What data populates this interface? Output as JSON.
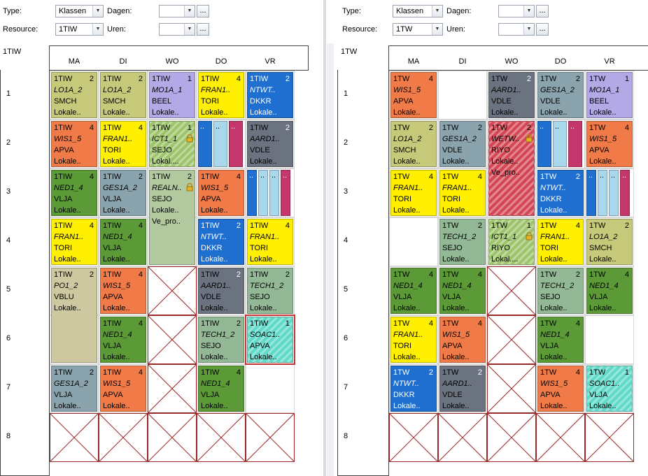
{
  "colors": {
    "olive": "#c6c97a",
    "lav": "#b3a9e6",
    "yellow": "#ffef00",
    "blue": "#1f6fd0",
    "orange": "#f07b48",
    "green": "#5c9a38",
    "slate": "#8aa3ad",
    "gray": "#6b7280",
    "sage": "#93b896",
    "tan": "#cdc8a0",
    "teal": "#5fd9c8",
    "lblue": "#a9d7ec",
    "magenta": "#c4376c",
    "red": "#d44654",
    "lime": "#9dc46a",
    "pale": "#b2c9a0"
  },
  "left": {
    "type_label": "Type:",
    "type_value": "Klassen",
    "resource_label": "Resource:",
    "resource_value": "1TIW",
    "dagen_label": "Dagen:",
    "uren_label": "Uren:",
    "dots": "...",
    "class_name": "1TIW",
    "days": [
      "MA",
      "DI",
      "WO",
      "DO",
      "VR"
    ],
    "rows": [
      "1",
      "2",
      "3",
      "4",
      "5",
      "6",
      "7",
      "8"
    ]
  },
  "right": {
    "type_label": "Type:",
    "type_value": "Klassen",
    "resource_label": "Resource:",
    "resource_value": "1TW",
    "dagen_label": "Dagen:",
    "uren_label": "Uren:",
    "dots": "...",
    "class_name": "1TW",
    "days": [
      "MA",
      "DI",
      "WO",
      "DO",
      "VR"
    ],
    "rows": [
      "1",
      "2",
      "3",
      "4",
      "5",
      "6",
      "7",
      "8"
    ]
  },
  "left_lessons": [
    {
      "d": 0,
      "r": 0,
      "h": 1,
      "c": "olive",
      "num": "2",
      "l1": "1TIW",
      "l2": "LO1A_2",
      "l3": "SMCH",
      "l4": "Lokale.."
    },
    {
      "d": 1,
      "r": 0,
      "h": 1,
      "c": "olive",
      "num": "2",
      "l1": "1TIW",
      "l2": "LO1A_2",
      "l3": "SMCH",
      "l4": "Lokale.."
    },
    {
      "d": 2,
      "r": 0,
      "h": 1,
      "c": "lav",
      "num": "1",
      "l1": "1TIW",
      "l2": "MO1A_1",
      "l3": "BEEL",
      "l4": "Lokale.."
    },
    {
      "d": 3,
      "r": 0,
      "h": 1,
      "c": "yellow",
      "num": "4",
      "l1": "1TIW",
      "l2": "FRAN1..",
      "l3": "TORI",
      "l4": "Lokale.."
    },
    {
      "d": 4,
      "r": 0,
      "h": 1,
      "c": "blue",
      "num": "2",
      "l1": "1TIW",
      "l2": "NTWT..",
      "l3": "DKKR",
      "l4": "Lokale.."
    },
    {
      "d": 0,
      "r": 1,
      "h": 1,
      "c": "orange",
      "num": "4",
      "l1": "1TIW",
      "l2": "WIS1_5",
      "l3": "APVA",
      "l4": "Lokale.."
    },
    {
      "d": 1,
      "r": 1,
      "h": 1,
      "c": "yellow",
      "num": "4",
      "l1": "1TIW",
      "l2": "FRAN1..",
      "l3": "TORI",
      "l4": "Lokale.."
    },
    {
      "d": 2,
      "r": 1,
      "h": 1,
      "c": "lime",
      "hatch": true,
      "lock": true,
      "num": "1",
      "l1": "1TIW",
      "l2": "ICT1_1",
      "l3": "SEJO",
      "l4": "Lokal...."
    },
    {
      "d": 4,
      "r": 1,
      "h": 1,
      "c": "gray",
      "num": "2",
      "l1": "1TIW",
      "l2": "AARD1..",
      "l3": "VDLE",
      "l4": "Lokale.."
    },
    {
      "d": 0,
      "r": 2,
      "h": 1,
      "c": "green",
      "num": "4",
      "l1": "1TIW",
      "l2": "NED1_4",
      "l3": "VLJA",
      "l4": "Lokale.."
    },
    {
      "d": 1,
      "r": 2,
      "h": 1,
      "c": "slate",
      "num": "2",
      "l1": "1TIW",
      "l2": "GES1A_2",
      "l3": "VLJA",
      "l4": "Lokale.."
    },
    {
      "d": 2,
      "r": 2,
      "h": 2,
      "c": "pale",
      "lock": true,
      "num": "2",
      "l1": "1TIW",
      "l2": "REALN..",
      "l3": "SEJO",
      "l4": "Lokale..",
      "l5": "Ve_pro.."
    },
    {
      "d": 3,
      "r": 2,
      "h": 1,
      "c": "orange",
      "num": "4",
      "l1": "1TIW",
      "l2": "WIS1_5",
      "l3": "APVA",
      "l4": "Lokale.."
    },
    {
      "d": 0,
      "r": 3,
      "h": 1,
      "c": "yellow",
      "num": "4",
      "l1": "1TIW",
      "l2": "FRAN1..",
      "l3": "TORI",
      "l4": "Lokale.."
    },
    {
      "d": 1,
      "r": 3,
      "h": 1,
      "c": "green",
      "num": "4",
      "l1": "1TIW",
      "l2": "NED1_4",
      "l3": "VLJA",
      "l4": "Lokale.."
    },
    {
      "d": 3,
      "r": 3,
      "h": 1,
      "c": "blue",
      "num": "2",
      "l1": "1TIW",
      "l2": "NTWT..",
      "l3": "DKKR",
      "l4": "Lokale.."
    },
    {
      "d": 4,
      "r": 3,
      "h": 1,
      "c": "yellow",
      "num": "4",
      "l1": "1TIW",
      "l2": "FRAN1..",
      "l3": "TORI",
      "l4": "Lokale.."
    },
    {
      "d": 0,
      "r": 4,
      "h": 2,
      "c": "tan",
      "num": "2",
      "l1": "1TIW",
      "l2": "PO1_2",
      "l3": "VBLU",
      "l4": "Lokale.."
    },
    {
      "d": 1,
      "r": 4,
      "h": 1,
      "c": "orange",
      "num": "4",
      "l1": "1TIW",
      "l2": "WIS1_5",
      "l3": "APVA",
      "l4": "Lokale.."
    },
    {
      "d": 3,
      "r": 4,
      "h": 1,
      "c": "gray",
      "num": "2",
      "l1": "1TIW",
      "l2": "AARD1..",
      "l3": "VDLE",
      "l4": "Lokale.."
    },
    {
      "d": 4,
      "r": 4,
      "h": 1,
      "c": "sage",
      "num": "2",
      "l1": "1TIW",
      "l2": "TECH1_2",
      "l3": "SEJO",
      "l4": "Lokale.."
    },
    {
      "d": 1,
      "r": 5,
      "h": 1,
      "c": "green",
      "num": "4",
      "l1": "1TIW",
      "l2": "NED1_4",
      "l3": "VLJA",
      "l4": "Lokale.."
    },
    {
      "d": 3,
      "r": 5,
      "h": 1,
      "c": "sage",
      "num": "2",
      "l1": "1TIW",
      "l2": "TECH1_2",
      "l3": "SEJO",
      "l4": "Lokale.."
    },
    {
      "d": 4,
      "r": 5,
      "h": 1,
      "c": "teal",
      "hatch": true,
      "sel": true,
      "num": "1",
      "l1": "1TIW",
      "l2": "SOAC1..",
      "l3": "APVA",
      "l4": "Lokale.."
    },
    {
      "d": 0,
      "r": 6,
      "h": 1,
      "c": "slate",
      "num": "2",
      "l1": "1TIW",
      "l2": "GES1A_2",
      "l3": "VLJA",
      "l4": "Lokale.."
    },
    {
      "d": 1,
      "r": 6,
      "h": 1,
      "c": "orange",
      "num": "4",
      "l1": "1TIW",
      "l2": "WIS1_5",
      "l3": "APVA",
      "l4": "Lokale.."
    },
    {
      "d": 3,
      "r": 6,
      "h": 1,
      "c": "green",
      "num": "4",
      "l1": "1TIW",
      "l2": "NED1_4",
      "l3": "VLJA",
      "l4": "Lokale.."
    }
  ],
  "left_splits": [
    {
      "d": 3,
      "r": 1,
      "parts": [
        {
          "c": "blue",
          "t": ".."
        },
        {
          "c": "lblue",
          "t": ".."
        },
        {
          "c": "magenta",
          "t": ".."
        }
      ]
    },
    {
      "d": 4,
      "r": 2,
      "parts": [
        {
          "c": "blue",
          "t": ".."
        },
        {
          "c": "lblue",
          "t": ".."
        },
        {
          "c": "lblue",
          "t": ".."
        },
        {
          "c": "magenta",
          "t": ".."
        }
      ]
    }
  ],
  "left_x": [
    [
      2,
      4
    ],
    [
      2,
      5
    ],
    [
      2,
      6
    ],
    [
      0,
      7
    ],
    [
      1,
      7
    ],
    [
      2,
      7
    ],
    [
      3,
      7
    ],
    [
      4,
      7
    ]
  ],
  "right_lessons": [
    {
      "d": 0,
      "r": 0,
      "h": 1,
      "c": "orange",
      "num": "4",
      "l1": "1TW",
      "l2": "WIS1_5",
      "l3": "APVA",
      "l4": "Lokale.."
    },
    {
      "d": 2,
      "r": 0,
      "h": 1,
      "c": "gray",
      "num": "2",
      "l1": "1TW",
      "l2": "AARD1..",
      "l3": "VDLE",
      "l4": "Lokale.."
    },
    {
      "d": 3,
      "r": 0,
      "h": 1,
      "c": "slate",
      "num": "2",
      "l1": "1TW",
      "l2": "GES1A_2",
      "l3": "VDLE",
      "l4": "Lokale.."
    },
    {
      "d": 4,
      "r": 0,
      "h": 1,
      "c": "lav",
      "num": "1",
      "l1": "1TW",
      "l2": "MO1A_1",
      "l3": "BEEL",
      "l4": "Lokale.."
    },
    {
      "d": 0,
      "r": 1,
      "h": 1,
      "c": "olive",
      "num": "2",
      "l1": "1TW",
      "l2": "LO1A_2",
      "l3": "SMCH",
      "l4": "Lokale.."
    },
    {
      "d": 1,
      "r": 1,
      "h": 1,
      "c": "slate",
      "num": "2",
      "l1": "1TW",
      "l2": "GES1A_2",
      "l3": "VDLE",
      "l4": "Lokale.."
    },
    {
      "d": 2,
      "r": 1,
      "h": 2,
      "c": "red",
      "hatch": true,
      "lock": true,
      "num": "2",
      "l1": "1TW",
      "l2": "WETW..",
      "l3": "RIYO",
      "l4": "Lokale..",
      "l5": "Ve_pro.."
    },
    {
      "d": 4,
      "r": 1,
      "h": 1,
      "c": "orange",
      "num": "4",
      "l1": "1TW",
      "l2": "WIS1_5",
      "l3": "APVA",
      "l4": "Lokale.."
    },
    {
      "d": 0,
      "r": 2,
      "h": 1,
      "c": "yellow",
      "num": "4",
      "l1": "1TW",
      "l2": "FRAN1..",
      "l3": "TORI",
      "l4": "Lokale.."
    },
    {
      "d": 1,
      "r": 2,
      "h": 1,
      "c": "yellow",
      "num": "4",
      "l1": "1TW",
      "l2": "FRAN1..",
      "l3": "TORI",
      "l4": "Lokale.."
    },
    {
      "d": 3,
      "r": 2,
      "h": 1,
      "c": "blue",
      "num": "2",
      "l1": "1TW",
      "l2": "NTWT..",
      "l3": "DKKR",
      "l4": "Lokale.."
    },
    {
      "d": 1,
      "r": 3,
      "h": 1,
      "c": "sage",
      "num": "2",
      "l1": "1TW",
      "l2": "TECH1_2",
      "l3": "SEJO",
      "l4": "Lokale.."
    },
    {
      "d": 2,
      "r": 3,
      "h": 1,
      "c": "lime",
      "hatch": true,
      "lock": true,
      "num": "1",
      "l1": "1TW",
      "l2": "ICT1_1",
      "l3": "RIYO",
      "l4": "Lokal...."
    },
    {
      "d": 3,
      "r": 3,
      "h": 1,
      "c": "yellow",
      "num": "4",
      "l1": "1TW",
      "l2": "FRAN1..",
      "l3": "TORI",
      "l4": "Lokale.."
    },
    {
      "d": 4,
      "r": 3,
      "h": 1,
      "c": "olive",
      "num": "2",
      "l1": "1TW",
      "l2": "LO1A_2",
      "l3": "SMCH",
      "l4": "Lokale.."
    },
    {
      "d": 0,
      "r": 4,
      "h": 1,
      "c": "green",
      "num": "4",
      "l1": "1TW",
      "l2": "NED1_4",
      "l3": "VLJA",
      "l4": "Lokale.."
    },
    {
      "d": 1,
      "r": 4,
      "h": 1,
      "c": "green",
      "num": "4",
      "l1": "1TW",
      "l2": "NED1_4",
      "l3": "VLJA",
      "l4": "Lokale.."
    },
    {
      "d": 3,
      "r": 4,
      "h": 1,
      "c": "sage",
      "num": "2",
      "l1": "1TW",
      "l2": "TECH1_2",
      "l3": "SEJO",
      "l4": "Lokale.."
    },
    {
      "d": 4,
      "r": 4,
      "h": 1,
      "c": "green",
      "num": "4",
      "l1": "1TW",
      "l2": "NED1_4",
      "l3": "VLJA",
      "l4": "Lokale.."
    },
    {
      "d": 0,
      "r": 5,
      "h": 1,
      "c": "yellow",
      "num": "4",
      "l1": "1TW",
      "l2": "FRAN1..",
      "l3": "TORI",
      "l4": "Lokale.."
    },
    {
      "d": 1,
      "r": 5,
      "h": 1,
      "c": "orange",
      "num": "4",
      "l1": "1TW",
      "l2": "WIS1_5",
      "l3": "APVA",
      "l4": "Lokale.."
    },
    {
      "d": 3,
      "r": 5,
      "h": 1,
      "c": "green",
      "num": "4",
      "l1": "1TW",
      "l2": "NED1_4",
      "l3": "VLJA",
      "l4": "Lokale.."
    },
    {
      "d": 0,
      "r": 6,
      "h": 1,
      "c": "blue",
      "num": "2",
      "l1": "1TW",
      "l2": "NTWT..",
      "l3": "DKKR",
      "l4": "Lokale.."
    },
    {
      "d": 1,
      "r": 6,
      "h": 1,
      "c": "gray",
      "num": "2",
      "l1": "1TW",
      "l2": "AARD1..",
      "l3": "VDLE",
      "l4": "Lokale.."
    },
    {
      "d": 3,
      "r": 6,
      "h": 1,
      "c": "orange",
      "num": "4",
      "l1": "1TW",
      "l2": "WIS1_5",
      "l3": "APVA",
      "l4": "Lokale.."
    },
    {
      "d": 4,
      "r": 6,
      "h": 1,
      "c": "teal",
      "hatch": true,
      "num": "1",
      "l1": "1TW",
      "l2": "SOAC1..",
      "l3": "VLJA",
      "l4": "Lokale.."
    }
  ],
  "right_splits": [
    {
      "d": 3,
      "r": 1,
      "parts": [
        {
          "c": "blue",
          "t": ".."
        },
        {
          "c": "lblue",
          "t": ".."
        },
        {
          "c": "magenta",
          "t": ".."
        }
      ]
    },
    {
      "d": 4,
      "r": 2,
      "parts": [
        {
          "c": "blue",
          "t": ".."
        },
        {
          "c": "lblue",
          "t": ".."
        },
        {
          "c": "lblue",
          "t": ".."
        },
        {
          "c": "magenta",
          "t": ".."
        }
      ]
    }
  ],
  "right_x": [
    [
      2,
      4
    ],
    [
      2,
      5
    ],
    [
      2,
      6
    ],
    [
      0,
      7
    ],
    [
      1,
      7
    ],
    [
      2,
      7
    ],
    [
      3,
      7
    ],
    [
      4,
      7
    ]
  ]
}
